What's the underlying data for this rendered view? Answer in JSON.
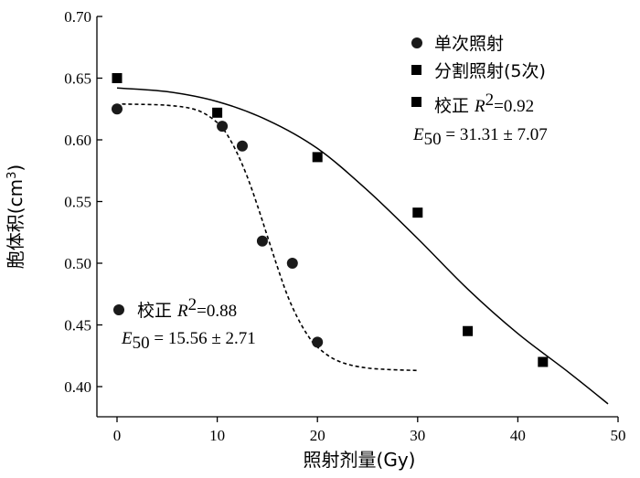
{
  "chart_data": {
    "type": "scatter",
    "xlabel": "照射剂量(Gy)",
    "ylabel": "胞体积(cm",
    "ylabel_sup": "3",
    "ylabel_close": ")",
    "xlim": [
      -2,
      50
    ],
    "ylim": [
      0.375,
      0.7
    ],
    "xticks": [
      0,
      10,
      20,
      30,
      40,
      50
    ],
    "xtick_labels": [
      "0",
      "10",
      "20",
      "30",
      "40",
      "50"
    ],
    "yticks": [
      0.4,
      0.45,
      0.5,
      0.55,
      0.6,
      0.65,
      0.7
    ],
    "ytick_labels": [
      "0.40",
      "0.45",
      "0.50",
      "0.55",
      "0.60",
      "0.65",
      "0.70"
    ],
    "grid": false,
    "legend_position": "top-right",
    "series": [
      {
        "name": "单次照射",
        "marker": "circle",
        "color": "#1a1a1a",
        "points": [
          {
            "x": 0,
            "y": 0.625
          },
          {
            "x": 10.5,
            "y": 0.611
          },
          {
            "x": 12.5,
            "y": 0.595
          },
          {
            "x": 14.5,
            "y": 0.518
          },
          {
            "x": 17.5,
            "y": 0.5
          },
          {
            "x": 20,
            "y": 0.436
          }
        ],
        "fit": {
          "style": "dashed",
          "x": [
            0.5,
            5,
            8,
            10,
            11,
            12,
            13,
            14,
            15,
            16,
            17,
            18,
            19,
            20,
            22,
            25,
            30
          ],
          "y": [
            0.629,
            0.628,
            0.624,
            0.614,
            0.604,
            0.589,
            0.57,
            0.547,
            0.522,
            0.497,
            0.474,
            0.456,
            0.442,
            0.432,
            0.421,
            0.415,
            0.413
          ]
        },
        "annotation": {
          "label": "校正",
          "r2_label": "R",
          "r2_value": "=0.88",
          "e50_label": "E",
          "e50_sub": "50",
          "e50_value": " = 15.56 ± 2.71"
        }
      },
      {
        "name": "分割照射(5次)",
        "marker": "square",
        "color": "#000000",
        "points": [
          {
            "x": 0,
            "y": 0.65
          },
          {
            "x": 10,
            "y": 0.622
          },
          {
            "x": 20,
            "y": 0.586
          },
          {
            "x": 30,
            "y": 0.541
          },
          {
            "x": 35,
            "y": 0.445
          },
          {
            "x": 42.5,
            "y": 0.42
          }
        ],
        "fit": {
          "style": "solid",
          "x": [
            0,
            5,
            10,
            15,
            20,
            25,
            30,
            35,
            40,
            45,
            49
          ],
          "y": [
            0.642,
            0.639,
            0.631,
            0.616,
            0.593,
            0.559,
            0.52,
            0.479,
            0.443,
            0.412,
            0.386
          ]
        },
        "annotation": {
          "label": "校正",
          "r2_label": "R",
          "r2_value": "=0.92",
          "e50_label": "E",
          "e50_sub": "50",
          "e50_value": " = 31.31 ± 7.07"
        }
      }
    ]
  }
}
